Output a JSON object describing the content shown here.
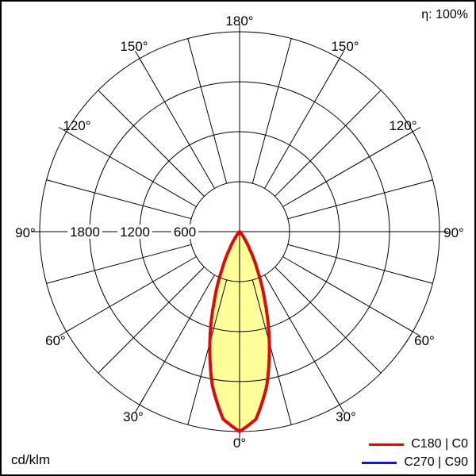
{
  "header": {
    "efficiency": "η: 100%"
  },
  "footer": {
    "unit": "cd/klm"
  },
  "legend": {
    "items": [
      {
        "id": "c180-c0",
        "label": "C180 | C0",
        "color": "#dd0a0a"
      },
      {
        "id": "c270-c90",
        "label": "C270 | C90",
        "color": "#1414cc"
      }
    ]
  },
  "chart_data": {
    "type": "polar-intensity",
    "title": "Luminous intensity distribution",
    "unit": "cd/klm",
    "efficiency": "η: 100%",
    "grid": true,
    "rings_cd_klm": [
      600,
      1200,
      1800,
      2400
    ],
    "ring_labels": [
      "600",
      "1200",
      "1800"
    ],
    "max_ring_cd_klm": 2400,
    "angle_tick_step_deg": 15,
    "angle_label_step_deg": 30,
    "angle_labels": [
      "0°",
      "30°",
      "60°",
      "90°",
      "120°",
      "150°",
      "180°"
    ],
    "gamma_deg": [
      0,
      5,
      10,
      15,
      20,
      25,
      30,
      35,
      40,
      45,
      50,
      55
    ],
    "series": [
      {
        "name": "C180 | C0",
        "color": "#dd0a0a",
        "values_cd_klm": [
          2400,
          2260,
          1880,
          1380,
          890,
          500,
          240,
          100,
          35,
          10,
          2,
          0
        ]
      },
      {
        "name": "C270 | C90",
        "color": "#1414cc",
        "values_cd_klm": [
          2400,
          2260,
          1880,
          1380,
          890,
          500,
          240,
          100,
          35,
          10,
          2,
          0
        ]
      }
    ],
    "symmetric": true,
    "beam_fill_color": "#ffff99",
    "peak_at_deg": 0,
    "legend_position": "bottom-right"
  }
}
